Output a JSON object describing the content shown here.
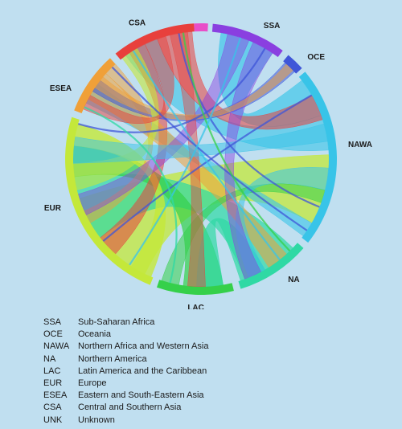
{
  "regions": [
    {
      "code": "CSA",
      "name": "Central and Southern Asia",
      "color": "#e8403c"
    },
    {
      "code": "SSA",
      "name": "Sub-Saharan Africa",
      "color": "#8a3fe0"
    },
    {
      "code": "OCE",
      "name": "Oceania",
      "color": "#3f56d8"
    },
    {
      "code": "NAWA",
      "name": "Northern Africa and Western Asia",
      "color": "#38c4e8"
    },
    {
      "code": "NA",
      "name": "Northern America",
      "color": "#2fd9a4"
    },
    {
      "code": "LAC",
      "name": "Latin America and the Caribbean",
      "color": "#35d04a"
    },
    {
      "code": "EUR",
      "name": "Europe",
      "color": "#c4e83a"
    },
    {
      "code": "ESEA",
      "name": "Eastern and South-Eastern Asia",
      "color": "#f0a038"
    },
    {
      "code": "UNK",
      "name": "Unknown",
      "color": "#e84fc8"
    }
  ],
  "legend": [
    {
      "code": "SSA",
      "name": "Sub-Saharan Africa"
    },
    {
      "code": "OCE",
      "name": "Oceania"
    },
    {
      "code": "NAWA",
      "name": "Northern Africa and Western Asia"
    },
    {
      "code": "NA",
      "name": "Northern America"
    },
    {
      "code": "LAC",
      "name": "Latin America and the Caribbean"
    },
    {
      "code": "EUR",
      "name": "Europe"
    },
    {
      "code": "ESEA",
      "name": "Eastern and South-Eastern Asia"
    },
    {
      "code": "CSA",
      "name": "Central and Southern Asia"
    },
    {
      "code": "UNK",
      "name": "Unknown"
    }
  ]
}
